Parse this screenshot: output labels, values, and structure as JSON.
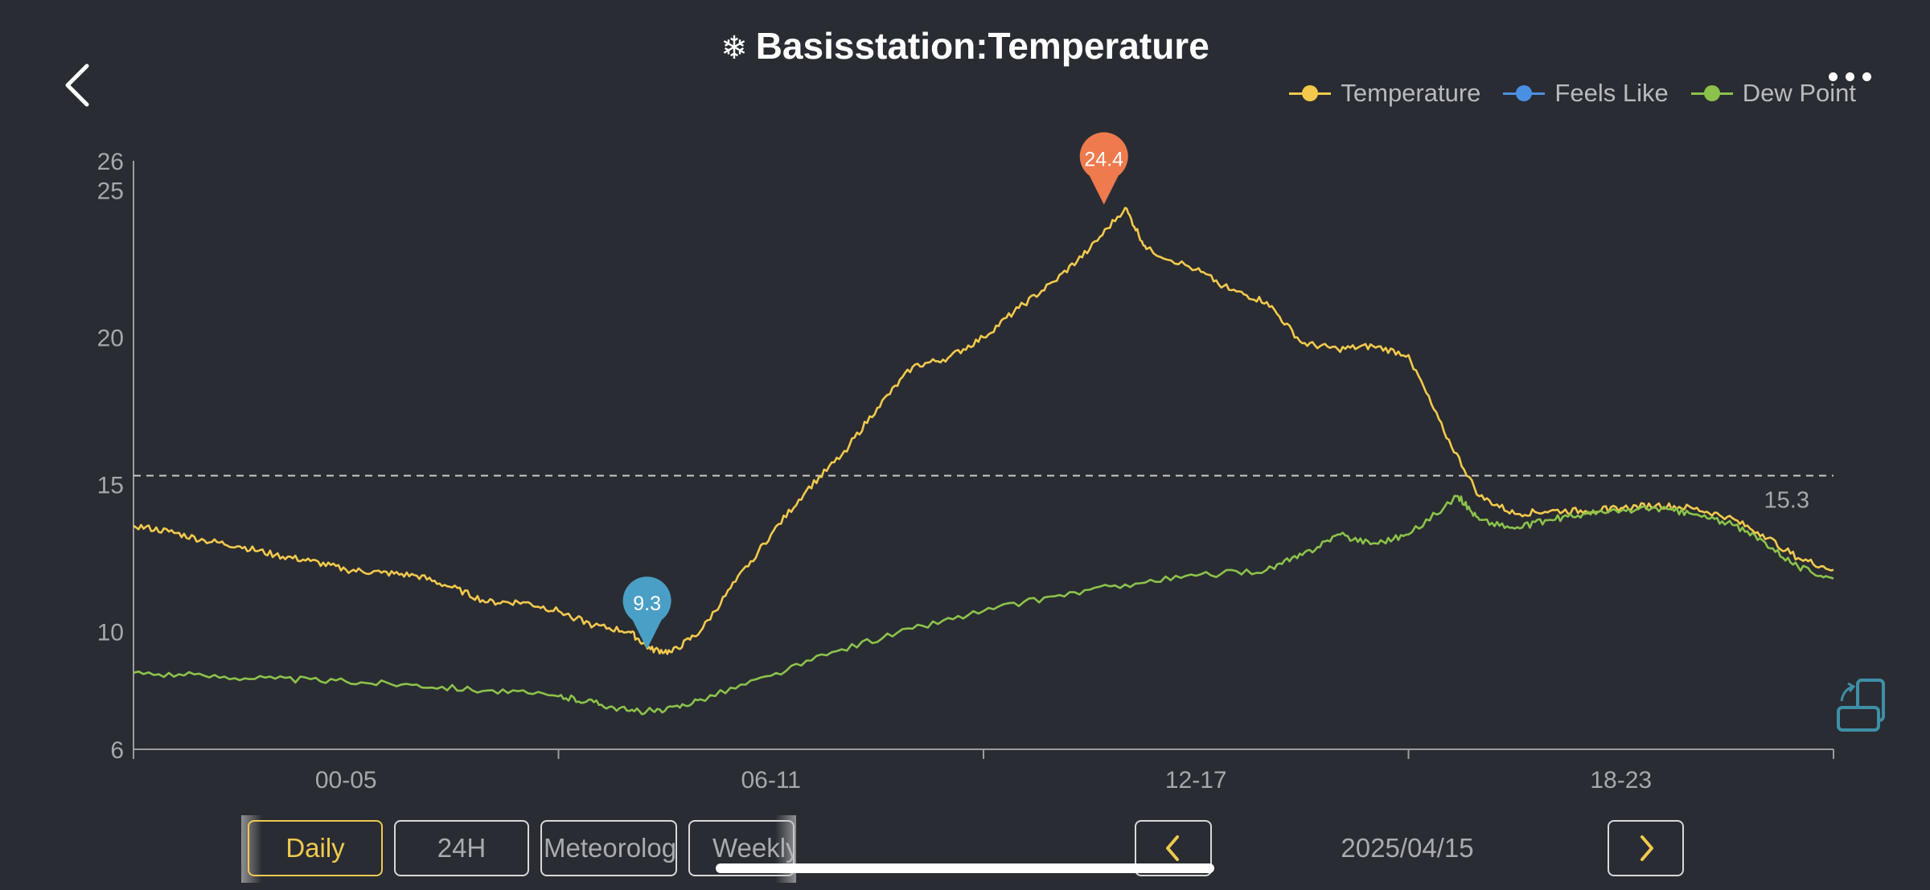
{
  "header": {
    "title": "Basisstation:Temperature",
    "title_icon": "snowflake-icon"
  },
  "legend": [
    {
      "name": "Temperature",
      "color": "#f2c94c"
    },
    {
      "name": "Feels Like",
      "color": "#4a90e2"
    },
    {
      "name": "Dew Point",
      "color": "#8bc34a"
    }
  ],
  "chart_data": {
    "type": "line",
    "y_ticks": [
      "6",
      "10",
      "15",
      "20",
      "25",
      "26"
    ],
    "ylim": [
      6,
      26
    ],
    "x_tick_labels": [
      "00-05",
      "06-11",
      "12-17",
      "18-23"
    ],
    "x_hours": [
      0,
      24
    ],
    "average_line": {
      "value": 15.3,
      "label": "15.3"
    },
    "min_marker": {
      "value": 9.3,
      "label": "9.3",
      "hour": 7.25,
      "color": "#4a9fc7"
    },
    "max_marker": {
      "value": 24.4,
      "label": "24.4",
      "hour": 13.7,
      "color": "#ee7a4d"
    },
    "series": [
      {
        "name": "Temperature",
        "color": "#f2c94c",
        "points": [
          [
            0,
            13.6
          ],
          [
            0.5,
            13.4
          ],
          [
            1,
            13.1
          ],
          [
            1.5,
            12.9
          ],
          [
            2,
            12.6
          ],
          [
            2.5,
            12.4
          ],
          [
            3,
            12.1
          ],
          [
            3.5,
            12.0
          ],
          [
            4,
            11.9
          ],
          [
            4.5,
            11.5
          ],
          [
            5,
            11.0
          ],
          [
            5.5,
            11.0
          ],
          [
            6,
            10.7
          ],
          [
            6.5,
            10.2
          ],
          [
            7,
            10.0
          ],
          [
            7.3,
            9.4
          ],
          [
            7.6,
            9.3
          ],
          [
            8,
            10.0
          ],
          [
            8.5,
            11.7
          ],
          [
            9,
            13.3
          ],
          [
            9.5,
            14.8
          ],
          [
            10,
            16.0
          ],
          [
            10.5,
            17.6
          ],
          [
            11,
            19.0
          ],
          [
            11.5,
            19.3
          ],
          [
            12,
            20.0
          ],
          [
            12.5,
            21.0
          ],
          [
            13,
            21.9
          ],
          [
            13.5,
            23.0
          ],
          [
            14,
            24.4
          ],
          [
            14.3,
            23.0
          ],
          [
            15,
            22.3
          ],
          [
            15.5,
            21.6
          ],
          [
            16,
            21.2
          ],
          [
            16.5,
            19.8
          ],
          [
            17,
            19.6
          ],
          [
            17.5,
            19.7
          ],
          [
            18,
            19.4
          ],
          [
            18.5,
            16.8
          ],
          [
            19,
            14.6
          ],
          [
            19.5,
            14.0
          ],
          [
            20,
            14.1
          ],
          [
            20.5,
            14.1
          ],
          [
            21,
            14.2
          ],
          [
            21.5,
            14.3
          ],
          [
            22,
            14.2
          ],
          [
            22.5,
            13.9
          ],
          [
            23,
            13.3
          ],
          [
            23.5,
            12.5
          ],
          [
            24,
            12.1
          ]
        ]
      },
      {
        "name": "Dew Point",
        "color": "#8bc34a",
        "points": [
          [
            0,
            8.6
          ],
          [
            1,
            8.5
          ],
          [
            2,
            8.4
          ],
          [
            3,
            8.3
          ],
          [
            4,
            8.2
          ],
          [
            5,
            8.0
          ],
          [
            6,
            7.8
          ],
          [
            6.5,
            7.6
          ],
          [
            7,
            7.3
          ],
          [
            7.5,
            7.3
          ],
          [
            8,
            7.7
          ],
          [
            9,
            8.5
          ],
          [
            10,
            9.4
          ],
          [
            11,
            10.1
          ],
          [
            12,
            10.7
          ],
          [
            13,
            11.2
          ],
          [
            14,
            11.6
          ],
          [
            15,
            11.9
          ],
          [
            16,
            12.1
          ],
          [
            16.5,
            12.6
          ],
          [
            17,
            13.3
          ],
          [
            17.5,
            13.0
          ],
          [
            18,
            13.3
          ],
          [
            18.7,
            14.6
          ],
          [
            19,
            13.8
          ],
          [
            19.5,
            13.5
          ],
          [
            20,
            13.8
          ],
          [
            20.5,
            14.0
          ],
          [
            21,
            14.1
          ],
          [
            21.5,
            14.2
          ],
          [
            22,
            14.0
          ],
          [
            22.5,
            13.7
          ],
          [
            23,
            13.1
          ],
          [
            23.5,
            12.2
          ],
          [
            24,
            11.8
          ]
        ]
      }
    ]
  },
  "controls": {
    "tabs": [
      "Daily",
      "24H",
      "Meteorolog",
      "Weekly"
    ],
    "active_tab": "Daily",
    "date": "2025/04/15"
  }
}
